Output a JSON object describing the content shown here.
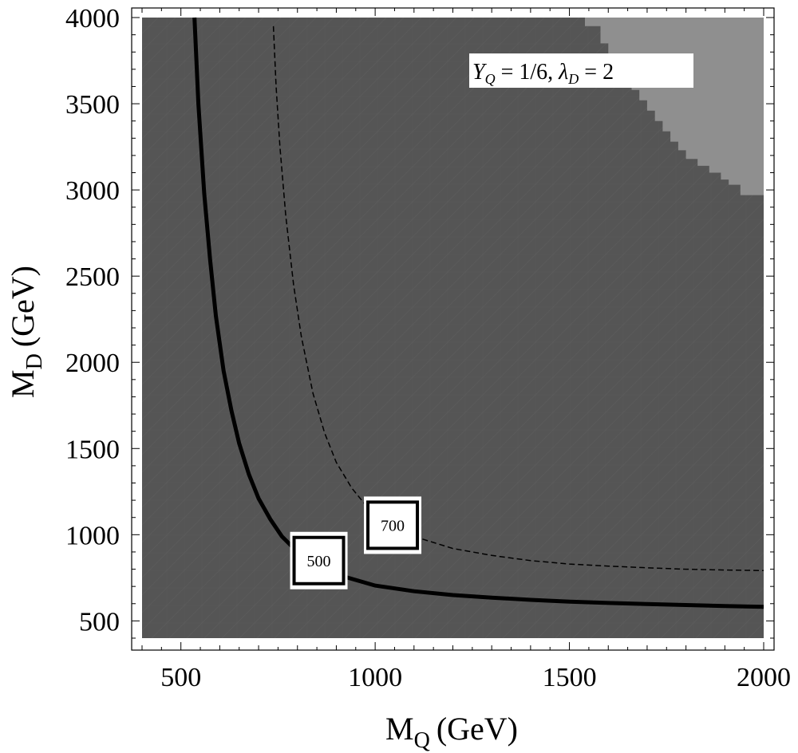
{
  "chart_data": {
    "type": "contour",
    "xlabel": "M",
    "xlabel_sub": "Q",
    "xlabel_unit": "(GeV)",
    "ylabel": "M",
    "ylabel_sub": "D",
    "ylabel_unit": "(GeV)",
    "xlim": [
      400,
      2000
    ],
    "ylim": [
      400,
      4000
    ],
    "xticks": [
      500,
      1000,
      1500,
      2000
    ],
    "yticks": [
      500,
      1000,
      1500,
      2000,
      2500,
      3000,
      3500,
      4000
    ],
    "annotation": {
      "parts": [
        "Y",
        "Q",
        " = 1/6, ",
        "λ",
        "D",
        " = 2"
      ]
    },
    "regions": [
      {
        "shade": "dark",
        "color": "#555555"
      },
      {
        "shade": "light",
        "color": "#8f8f8f",
        "boundary": [
          [
            1540,
            4000
          ],
          [
            1540,
            3950
          ],
          [
            1580,
            3950
          ],
          [
            1580,
            3850
          ],
          [
            1600,
            3850
          ],
          [
            1600,
            3750
          ],
          [
            1620,
            3750
          ],
          [
            1620,
            3700
          ],
          [
            1640,
            3700
          ],
          [
            1640,
            3640
          ],
          [
            1660,
            3640
          ],
          [
            1660,
            3580
          ],
          [
            1680,
            3580
          ],
          [
            1680,
            3520
          ],
          [
            1700,
            3520
          ],
          [
            1700,
            3460
          ],
          [
            1720,
            3460
          ],
          [
            1720,
            3400
          ],
          [
            1740,
            3400
          ],
          [
            1740,
            3340
          ],
          [
            1760,
            3340
          ],
          [
            1760,
            3280
          ],
          [
            1780,
            3280
          ],
          [
            1780,
            3230
          ],
          [
            1800,
            3230
          ],
          [
            1800,
            3180
          ],
          [
            1830,
            3180
          ],
          [
            1830,
            3140
          ],
          [
            1860,
            3140
          ],
          [
            1860,
            3100
          ],
          [
            1890,
            3100
          ],
          [
            1890,
            3060
          ],
          [
            1910,
            3060
          ],
          [
            1910,
            3030
          ],
          [
            1940,
            3030
          ],
          [
            1940,
            2970
          ],
          [
            2000,
            2970
          ],
          [
            2000,
            4000
          ]
        ]
      }
    ],
    "series": [
      {
        "label": "500",
        "style": "solid",
        "x": [
          535,
          545,
          560,
          575,
          590,
          610,
          630,
          650,
          675,
          700,
          730,
          760,
          800,
          850,
          900,
          1000,
          1100,
          1200,
          1300,
          1400,
          1500,
          1600,
          1700,
          1800,
          1900,
          2000
        ],
        "y": [
          4000,
          3500,
          2980,
          2600,
          2270,
          1950,
          1720,
          1530,
          1350,
          1210,
          1090,
          990,
          900,
          820,
          770,
          705,
          672,
          650,
          635,
          622,
          612,
          604,
          598,
          592,
          586,
          582
        ]
      },
      {
        "label": "700",
        "style": "dashed",
        "x": [
          738,
          745,
          755,
          770,
          790,
          810,
          840,
          870,
          900,
          940,
          980,
          1030,
          1100,
          1200,
          1300,
          1400,
          1500,
          1600,
          1700,
          1800,
          1900,
          2000
        ],
        "y": [
          3950,
          3600,
          3250,
          2850,
          2450,
          2150,
          1820,
          1590,
          1420,
          1270,
          1160,
          1070,
          990,
          920,
          880,
          850,
          830,
          818,
          808,
          800,
          795,
          792
        ]
      }
    ],
    "label_positions": [
      {
        "text": "500",
        "x": 855,
        "y": 850
      },
      {
        "text": "700",
        "x": 1045,
        "y": 1055
      }
    ]
  }
}
